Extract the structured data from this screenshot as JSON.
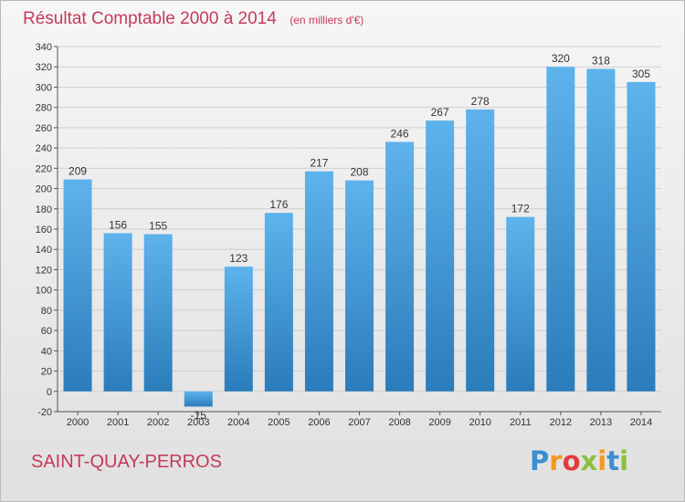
{
  "chart_data": {
    "type": "bar",
    "title": "Résultat Comptable 2000 à 2014",
    "subtitle": "(en milliers d'€)",
    "categories": [
      "2000",
      "2001",
      "2002",
      "2003",
      "2004",
      "2005",
      "2006",
      "2007",
      "2008",
      "2009",
      "2010",
      "2011",
      "2012",
      "2013",
      "2014"
    ],
    "values": [
      209,
      156,
      155,
      -15,
      123,
      176,
      217,
      208,
      246,
      267,
      278,
      172,
      320,
      318,
      305
    ],
    "ylim": [
      -20,
      340
    ],
    "yticks": [
      -20,
      0,
      20,
      40,
      60,
      80,
      100,
      120,
      140,
      160,
      180,
      200,
      220,
      240,
      260,
      280,
      300,
      320,
      340
    ],
    "grid": true,
    "bar_color_light": "#5eb3ec",
    "bar_color_dark": "#2a7cba"
  },
  "footer": {
    "place_name": "SAINT-QUAY-PERROS"
  },
  "logo": {
    "letters": [
      "P",
      "r",
      "o",
      "x",
      "i",
      "t",
      "i"
    ],
    "colors": [
      "#3a8fd0",
      "#f39a1e",
      "#e33b3b",
      "#8cbf3f",
      "#f39a1e",
      "#3a8fd0",
      "#8cbf3f"
    ]
  }
}
